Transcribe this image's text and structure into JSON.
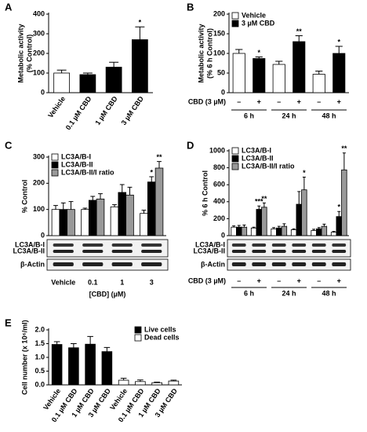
{
  "chart_data": [
    {
      "type": "bar",
      "panel": "A",
      "ylabel": [
        "Metabolic activity",
        "(% Control)"
      ],
      "categories": [
        "Vehicle",
        "0.1 µM CBD",
        "1 µM CBD",
        "3 µM CBD"
      ],
      "values": [
        100,
        92,
        130,
        270
      ],
      "errors": [
        15,
        8,
        25,
        65
      ],
      "colors": [
        "#ffffff",
        "#000000",
        "#000000",
        "#000000"
      ],
      "annotations": [
        null,
        null,
        null,
        "*"
      ],
      "ylim": [
        0,
        400
      ],
      "yticks": [
        0,
        100,
        200,
        300,
        400
      ]
    },
    {
      "type": "bar",
      "panel": "B",
      "ylabel": [
        "Metabolic activity",
        "(% 6 h Control)"
      ],
      "categories": [
        "–",
        "+",
        "–",
        "+",
        "–",
        "+"
      ],
      "treatment_label": "CBD (3 µM)",
      "groups": [
        "6 h",
        "24 h",
        "48 h"
      ],
      "series": [
        {
          "name": "Vehicle",
          "color": "#ffffff",
          "values": [
            100,
            null,
            72,
            null,
            47,
            null
          ],
          "errors": [
            10,
            null,
            8,
            null,
            8,
            null
          ],
          "annotations": [
            null,
            null,
            null,
            null,
            null,
            null
          ]
        },
        {
          "name": "3 µM CBD",
          "color": "#000000",
          "values": [
            null,
            87,
            null,
            130,
            null,
            100
          ],
          "errors": [
            null,
            4,
            null,
            15,
            null,
            18
          ],
          "annotations": [
            null,
            "*",
            null,
            "**",
            null,
            "*"
          ]
        }
      ],
      "ylim": [
        0,
        200
      ],
      "yticks": [
        0,
        50,
        100,
        150,
        200
      ]
    },
    {
      "type": "bar",
      "panel": "C",
      "ylabel": [
        "% Control"
      ],
      "xlabel": "[CBD] (µM)",
      "categories": [
        "Vehicle",
        "0.1",
        "1",
        "3"
      ],
      "blot_labels": [
        "LC3A/B-I",
        "LC3A/B-II",
        "β-Actin"
      ],
      "series": [
        {
          "name": "LC3A/B-I",
          "color": "#ffffff",
          "values": [
            100,
            100,
            110,
            85
          ],
          "errors": [
            15,
            5,
            8,
            12
          ],
          "annotations": [
            null,
            null,
            null,
            null
          ]
        },
        {
          "name": "LC3A/B-II",
          "color": "#000000",
          "values": [
            100,
            135,
            165,
            205
          ],
          "errors": [
            25,
            15,
            30,
            20
          ],
          "annotations": [
            null,
            null,
            null,
            "*"
          ]
        },
        {
          "name": "LC3A/B-II/I ratio",
          "color": "#999999",
          "values": [
            100,
            140,
            155,
            258
          ],
          "errors": [
            30,
            20,
            30,
            25
          ],
          "annotations": [
            null,
            null,
            null,
            "**"
          ]
        }
      ],
      "ylim": [
        0,
        300
      ],
      "yticks": [
        0,
        100,
        200,
        300
      ]
    },
    {
      "type": "bar",
      "panel": "D",
      "ylabel": [
        "% 6 h Control"
      ],
      "categories": [
        "–",
        "+",
        "–",
        "+",
        "–",
        "+"
      ],
      "treatment_label": "CBD (3 µM)",
      "groups": [
        "6 h",
        "24 h",
        "48 h"
      ],
      "blot_labels": [
        "LC3A/B-I",
        "LC3A/B-II",
        "β-Actin"
      ],
      "series": [
        {
          "name": "LC3A/B-I",
          "color": "#ffffff",
          "values": [
            100,
            90,
            80,
            70,
            60,
            40
          ],
          "errors": [
            15,
            10,
            15,
            10,
            15,
            10
          ],
          "annotations": [
            null,
            null,
            null,
            null,
            null,
            null
          ]
        },
        {
          "name": "LC3A/B-II",
          "color": "#000000",
          "values": [
            100,
            310,
            90,
            370,
            80,
            225
          ],
          "errors": [
            20,
            40,
            20,
            150,
            15,
            60
          ],
          "annotations": [
            null,
            "***",
            null,
            null,
            null,
            "*"
          ]
        },
        {
          "name": "LC3A/B-II/I ratio",
          "color": "#999999",
          "values": [
            100,
            335,
            110,
            540,
            110,
            775
          ],
          "errors": [
            25,
            50,
            30,
            150,
            25,
            200
          ],
          "annotations": [
            null,
            "**",
            null,
            "*",
            null,
            "**"
          ]
        }
      ],
      "ylim": [
        0,
        1000
      ],
      "yticks": [
        0,
        200,
        400,
        600,
        800,
        1000
      ]
    },
    {
      "type": "bar",
      "panel": "E",
      "ylabel": [
        "Cell number (x 10⁶/ml)"
      ],
      "categories": [
        "Vehicle",
        "0.1 µM CBD",
        "1 µM CBD",
        "3 µM CBD",
        "Vehicle",
        "0.1 µM CBD",
        "1 µM CBD",
        "3 µM CBD"
      ],
      "series": [
        {
          "name": "Live cells",
          "color": "#000000",
          "values": [
            1.47,
            1.35,
            1.48,
            1.21,
            null,
            null,
            null,
            null
          ],
          "errors": [
            0.1,
            0.15,
            0.28,
            0.15,
            null,
            null,
            null,
            null
          ],
          "annotations": [
            null,
            null,
            null,
            null,
            null,
            null,
            null,
            null
          ]
        },
        {
          "name": "Dead cells",
          "color": "#ffffff",
          "values": [
            null,
            null,
            null,
            null,
            0.17,
            0.12,
            0.08,
            0.14
          ],
          "errors": [
            null,
            null,
            null,
            null,
            0.07,
            0.06,
            0.02,
            0.03
          ],
          "annotations": [
            null,
            null,
            null,
            null,
            null,
            null,
            null,
            null
          ]
        }
      ],
      "ylim": [
        0,
        2.0
      ],
      "yticks": [
        {
          "value": 0,
          "label": "0.0"
        },
        0.5,
        {
          "value": 1,
          "label": "1.0"
        },
        1.5,
        {
          "value": 2,
          "label": "2.0"
        }
      ]
    }
  ]
}
